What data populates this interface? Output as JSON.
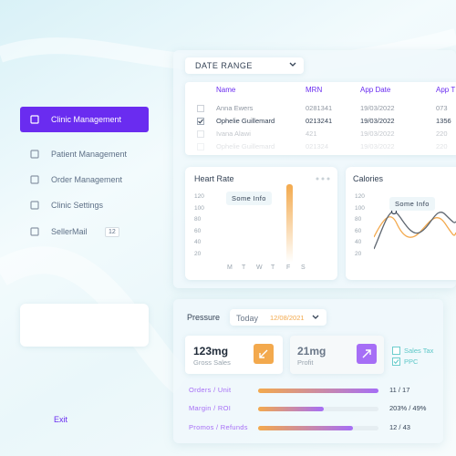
{
  "sidebar": {
    "items": [
      "Clinic Management",
      "Patient Management",
      "Order Management",
      "Clinic Settings",
      "SellerMail"
    ],
    "badge": "12",
    "exit": "Exit"
  },
  "date_range": "DATE RANGE",
  "table": {
    "columns": [
      "Name",
      "MRN",
      "App Date",
      "App T"
    ],
    "rows": [
      [
        "Anna Ewers",
        "0281341",
        "19/03/2022",
        "073"
      ],
      [
        "Ophelie Guillemard",
        "0213241",
        "19/03/2022",
        "1356"
      ],
      [
        "Ivana Alawi",
        "421",
        "19/03/2022",
        "220"
      ],
      [
        "Ophelie Guillemard",
        "021324",
        "19/03/2022",
        "220"
      ]
    ]
  },
  "heart_rate": {
    "title": "Heart Rate",
    "tooltip": "Some Info",
    "yticks": [
      "120",
      "100",
      "80",
      "60",
      "40",
      "20"
    ],
    "days": [
      "M",
      "T",
      "W",
      "T",
      "F",
      "S"
    ]
  },
  "calories": {
    "title": "Calories",
    "tooltip": "Some Info",
    "yticks": [
      "120",
      "100",
      "80",
      "60",
      "40",
      "20"
    ]
  },
  "pressure": {
    "title": "Pressure",
    "period": "Today",
    "date": "12/08/2021",
    "cards": [
      {
        "value": "123mg",
        "label": "Gross Sales"
      },
      {
        "value": "21mg",
        "label": "Profit"
      }
    ],
    "checks": [
      "Sales Tax",
      "PPC"
    ],
    "metrics": [
      {
        "label": "Orders / Unit",
        "value": "11 / 17"
      },
      {
        "label": "Margin / ROI",
        "value": "203% / 49%"
      },
      {
        "label": "Promos / Refunds",
        "value": "12 / 43"
      }
    ]
  }
}
